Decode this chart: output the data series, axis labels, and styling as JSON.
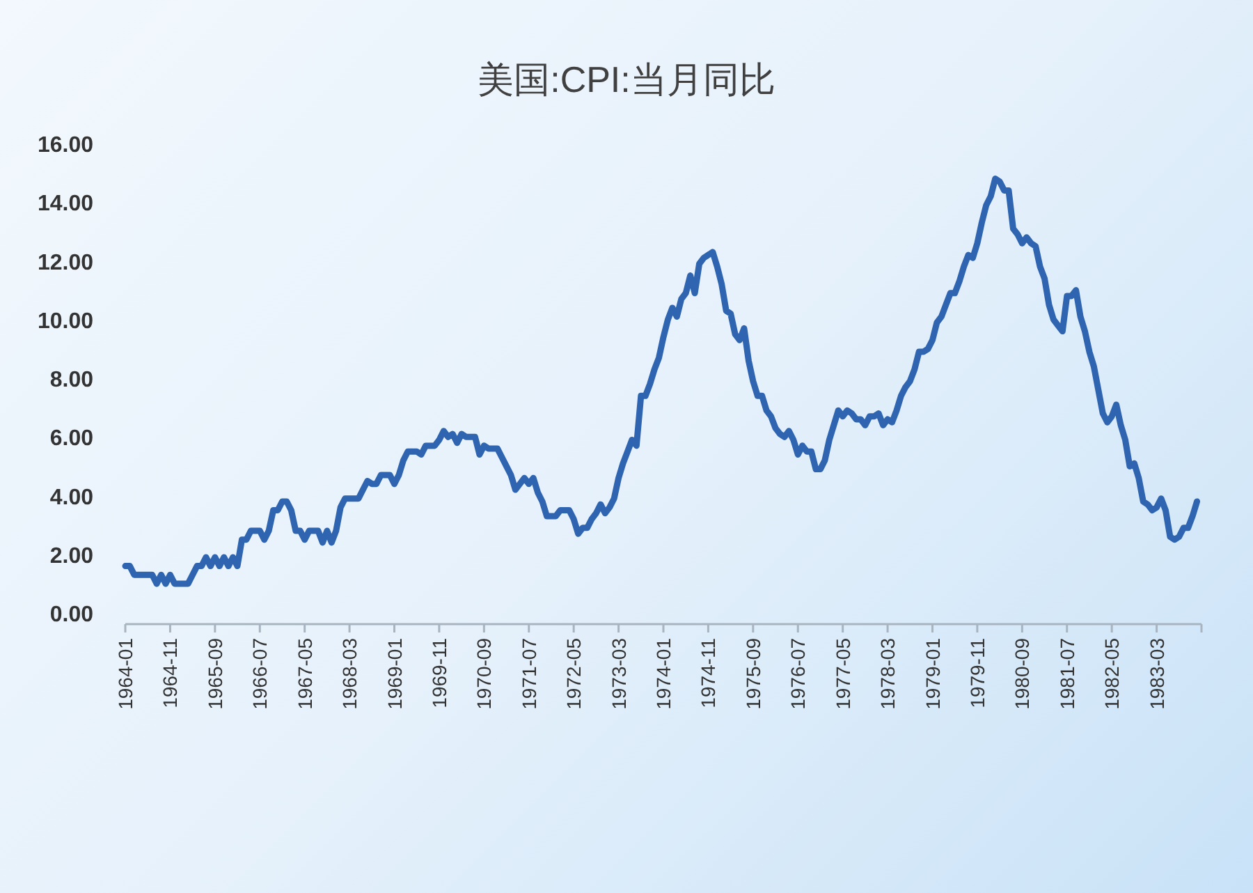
{
  "chart_data": {
    "type": "line",
    "title": "美国:CPI:当月同比",
    "x": [
      "1964-01",
      "1964-02",
      "1964-03",
      "1964-04",
      "1964-05",
      "1964-06",
      "1964-07",
      "1964-08",
      "1964-09",
      "1964-10",
      "1964-11",
      "1964-12",
      "1965-01",
      "1965-02",
      "1965-03",
      "1965-04",
      "1965-05",
      "1965-06",
      "1965-07",
      "1965-08",
      "1965-09",
      "1965-10",
      "1965-11",
      "1965-12",
      "1966-01",
      "1966-02",
      "1966-03",
      "1966-04",
      "1966-05",
      "1966-06",
      "1966-07",
      "1966-08",
      "1966-09",
      "1966-10",
      "1966-11",
      "1966-12",
      "1967-01",
      "1967-02",
      "1967-03",
      "1967-04",
      "1967-05",
      "1967-06",
      "1967-07",
      "1967-08",
      "1967-09",
      "1967-10",
      "1967-11",
      "1967-12",
      "1968-01",
      "1968-02",
      "1968-03",
      "1968-04",
      "1968-05",
      "1968-06",
      "1968-07",
      "1968-08",
      "1968-09",
      "1968-10",
      "1968-11",
      "1968-12",
      "1969-01",
      "1969-02",
      "1969-03",
      "1969-04",
      "1969-05",
      "1969-06",
      "1969-07",
      "1969-08",
      "1969-09",
      "1969-10",
      "1969-11",
      "1969-12",
      "1970-01",
      "1970-02",
      "1970-03",
      "1970-04",
      "1970-05",
      "1970-06",
      "1970-07",
      "1970-08",
      "1970-09",
      "1970-10",
      "1970-11",
      "1970-12",
      "1971-01",
      "1971-02",
      "1971-03",
      "1971-04",
      "1971-05",
      "1971-06",
      "1971-07",
      "1971-08",
      "1971-09",
      "1971-10",
      "1971-11",
      "1971-12",
      "1972-01",
      "1972-02",
      "1972-03",
      "1972-04",
      "1972-05",
      "1972-06",
      "1972-07",
      "1972-08",
      "1972-09",
      "1972-10",
      "1972-11",
      "1972-12",
      "1973-01",
      "1973-02",
      "1973-03",
      "1973-04",
      "1973-05",
      "1973-06",
      "1973-07",
      "1973-08",
      "1973-09",
      "1973-10",
      "1973-11",
      "1973-12",
      "1974-01",
      "1974-02",
      "1974-03",
      "1974-04",
      "1974-05",
      "1974-06",
      "1974-07",
      "1974-08",
      "1974-09",
      "1974-10",
      "1974-11",
      "1974-12",
      "1975-01",
      "1975-02",
      "1975-03",
      "1975-04",
      "1975-05",
      "1975-06",
      "1975-07",
      "1975-08",
      "1975-09",
      "1975-10",
      "1975-11",
      "1975-12",
      "1976-01",
      "1976-02",
      "1976-03",
      "1976-04",
      "1976-05",
      "1976-06",
      "1976-07",
      "1976-08",
      "1976-09",
      "1976-10",
      "1976-11",
      "1976-12",
      "1977-01",
      "1977-02",
      "1977-03",
      "1977-04",
      "1977-05",
      "1977-06",
      "1977-07",
      "1977-08",
      "1977-09",
      "1977-10",
      "1977-11",
      "1977-12",
      "1978-01",
      "1978-02",
      "1978-03",
      "1978-04",
      "1978-05",
      "1978-06",
      "1978-07",
      "1978-08",
      "1978-09",
      "1978-10",
      "1978-11",
      "1978-12",
      "1979-01",
      "1979-02",
      "1979-03",
      "1979-04",
      "1979-05",
      "1979-06",
      "1979-07",
      "1979-08",
      "1979-09",
      "1979-10",
      "1979-11",
      "1979-12",
      "1980-01",
      "1980-02",
      "1980-03",
      "1980-04",
      "1980-05",
      "1980-06",
      "1980-07",
      "1980-08",
      "1980-09",
      "1980-10",
      "1980-11",
      "1980-12",
      "1981-01",
      "1981-02",
      "1981-03",
      "1981-04",
      "1981-05",
      "1981-06",
      "1981-07",
      "1981-08",
      "1981-09",
      "1981-10",
      "1981-11",
      "1981-12",
      "1982-01",
      "1982-02",
      "1982-03",
      "1982-04",
      "1982-05",
      "1982-06",
      "1982-07",
      "1982-08",
      "1982-09",
      "1982-10",
      "1982-11",
      "1982-12",
      "1983-01",
      "1983-02",
      "1983-03",
      "1983-04",
      "1983-05",
      "1983-06",
      "1983-07",
      "1983-08",
      "1983-09",
      "1983-10",
      "1983-11",
      "1983-12"
    ],
    "series": [
      {
        "color": "#2e64b0",
        "values": [
          1.6,
          1.6,
          1.3,
          1.3,
          1.3,
          1.3,
          1.3,
          1.0,
          1.3,
          1.0,
          1.3,
          1.0,
          1.0,
          1.0,
          1.0,
          1.3,
          1.6,
          1.6,
          1.9,
          1.6,
          1.9,
          1.6,
          1.9,
          1.6,
          1.9,
          1.6,
          2.5,
          2.5,
          2.8,
          2.8,
          2.8,
          2.5,
          2.8,
          3.5,
          3.5,
          3.8,
          3.8,
          3.5,
          2.8,
          2.8,
          2.5,
          2.8,
          2.8,
          2.8,
          2.4,
          2.8,
          2.4,
          2.8,
          3.6,
          3.9,
          3.9,
          3.9,
          3.9,
          4.2,
          4.5,
          4.4,
          4.4,
          4.7,
          4.7,
          4.7,
          4.4,
          4.7,
          5.2,
          5.5,
          5.5,
          5.5,
          5.4,
          5.7,
          5.7,
          5.7,
          5.9,
          6.2,
          6.0,
          6.1,
          5.8,
          6.1,
          6.0,
          6.0,
          6.0,
          5.4,
          5.7,
          5.6,
          5.6,
          5.6,
          5.3,
          5.0,
          4.7,
          4.2,
          4.4,
          4.6,
          4.4,
          4.6,
          4.1,
          3.8,
          3.3,
          3.3,
          3.3,
          3.5,
          3.5,
          3.5,
          3.2,
          2.7,
          2.9,
          2.9,
          3.2,
          3.4,
          3.7,
          3.4,
          3.6,
          3.9,
          4.6,
          5.1,
          5.5,
          5.9,
          5.7,
          7.4,
          7.4,
          7.8,
          8.3,
          8.7,
          9.4,
          10.0,
          10.4,
          10.1,
          10.7,
          10.9,
          11.5,
          10.9,
          11.9,
          12.1,
          12.2,
          12.3,
          11.8,
          11.2,
          10.3,
          10.2,
          9.5,
          9.3,
          9.7,
          8.6,
          7.9,
          7.4,
          7.4,
          6.9,
          6.7,
          6.3,
          6.1,
          6.0,
          6.2,
          5.9,
          5.4,
          5.7,
          5.5,
          5.5,
          4.9,
          4.9,
          5.2,
          5.9,
          6.4,
          6.9,
          6.7,
          6.9,
          6.8,
          6.6,
          6.6,
          6.4,
          6.7,
          6.7,
          6.8,
          6.4,
          6.6,
          6.5,
          6.9,
          7.4,
          7.7,
          7.9,
          8.3,
          8.9,
          8.9,
          9.0,
          9.3,
          9.9,
          10.1,
          10.5,
          10.9,
          10.9,
          11.3,
          11.8,
          12.2,
          12.1,
          12.6,
          13.3,
          13.9,
          14.2,
          14.8,
          14.7,
          14.4,
          14.4,
          13.1,
          12.9,
          12.6,
          12.8,
          12.6,
          12.5,
          11.8,
          11.4,
          10.5,
          10.0,
          9.8,
          9.6,
          10.8,
          10.8,
          11.0,
          10.1,
          9.6,
          8.9,
          8.4,
          7.6,
          6.8,
          6.5,
          6.7,
          7.1,
          6.4,
          5.9,
          5.0,
          5.1,
          4.6,
          3.8,
          3.7,
          3.5,
          3.6,
          3.9,
          3.5,
          2.6,
          2.5,
          2.6,
          2.9,
          2.9,
          3.3,
          3.8
        ]
      }
    ],
    "xlim": [
      "1964-01",
      "1984-01"
    ],
    "xticks": [
      "1964-01",
      "1964-11",
      "1965-09",
      "1966-07",
      "1967-05",
      "1968-03",
      "1969-01",
      "1969-11",
      "1970-09",
      "1971-07",
      "1972-05",
      "1973-03",
      "1974-01",
      "1974-11",
      "1975-09",
      "1976-07",
      "1977-05",
      "1978-03",
      "1979-01",
      "1979-11",
      "1980-09",
      "1981-07",
      "1982-05",
      "1983-03"
    ],
    "ylim": [
      0,
      16
    ],
    "yticks": [
      {
        "value": 0,
        "label": "0.00"
      },
      {
        "value": 2,
        "label": "2.00"
      },
      {
        "value": 4,
        "label": "4.00"
      },
      {
        "value": 6,
        "label": "6.00"
      },
      {
        "value": 8,
        "label": "8.00"
      },
      {
        "value": 10,
        "label": "10.00"
      },
      {
        "value": 12,
        "label": "12.00"
      },
      {
        "value": 14,
        "label": "14.00"
      },
      {
        "value": 16,
        "label": "16.00"
      }
    ],
    "grid": false,
    "marker": "none",
    "line_style": "solid"
  }
}
